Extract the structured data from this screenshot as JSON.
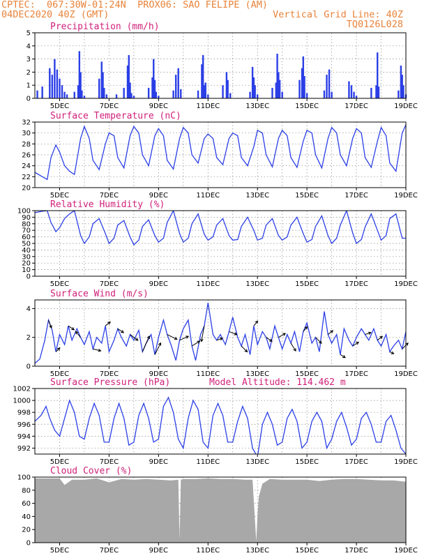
{
  "header": {
    "line1_left": "CPTEC:  067:30W-01:24N  PROX06: SAO FELIPE (AM)",
    "line2_left": "04DEC2020 40Z (GMT)",
    "line2_right": "Vertical Grid Line: 40Z",
    "line3_right": "TQ0126L028"
  },
  "colors": {
    "line": "#2b3fe6",
    "bar": "#2b3fe6",
    "cloud": "#a8a8a8",
    "title": "#d0207a",
    "header": "#e8833a"
  },
  "chart_data": [
    {
      "type": "bar",
      "title": "Precipitation (mm/h)",
      "ylim": [
        0,
        5
      ],
      "yticks": [
        0,
        1,
        2,
        3,
        4,
        5
      ],
      "xlim": [
        4.0,
        19.0
      ],
      "xticks": [
        "5DEC",
        "7DEC",
        "9DEC",
        "11DEC",
        "13DEC",
        "15DEC",
        "17DEC",
        "19DEC"
      ],
      "x": [
        4.1,
        4.3,
        4.6,
        4.7,
        4.8,
        4.9,
        5.0,
        5.1,
        5.2,
        5.3,
        5.6,
        5.75,
        5.8,
        5.85,
        5.9,
        6.0,
        6.6,
        6.7,
        6.75,
        6.8,
        6.9,
        7.3,
        7.6,
        7.75,
        7.8,
        7.85,
        7.9,
        8.0,
        8.6,
        8.75,
        8.8,
        8.85,
        8.9,
        9.0,
        9.6,
        9.7,
        9.8,
        9.9,
        10.6,
        10.75,
        10.8,
        10.85,
        10.9,
        11.0,
        11.6,
        11.75,
        11.8,
        11.9,
        12.7,
        12.8,
        12.85,
        12.9,
        13.0,
        13.6,
        13.75,
        13.8,
        13.85,
        13.9,
        14.0,
        14.7,
        14.8,
        14.85,
        14.9,
        15.0,
        15.7,
        15.8,
        15.9,
        16.0,
        16.7,
        16.8,
        16.9,
        17.0,
        17.6,
        17.8,
        17.85,
        17.9,
        18.7,
        18.8,
        18.85,
        18.9,
        19.0
      ],
      "values": [
        0.6,
        0.9,
        2.3,
        1.8,
        3.0,
        2.2,
        1.5,
        1.0,
        0.5,
        0.3,
        0.5,
        1.0,
        3.6,
        2.0,
        0.6,
        0.2,
        1.5,
        2.8,
        2.0,
        0.8,
        0.3,
        0.3,
        0.8,
        2.5,
        3.3,
        1.2,
        0.4,
        0.2,
        0.8,
        1.6,
        3.0,
        1.4,
        0.5,
        0.2,
        0.6,
        1.8,
        2.3,
        0.7,
        0.6,
        2.6,
        3.3,
        1.0,
        1.2,
        0.3,
        1.0,
        2.0,
        1.4,
        0.4,
        0.5,
        2.4,
        1.6,
        1.0,
        0.3,
        0.8,
        1.2,
        3.4,
        2.0,
        1.4,
        0.5,
        1.4,
        2.3,
        3.2,
        1.7,
        0.4,
        0.6,
        1.8,
        2.2,
        0.5,
        1.3,
        1.0,
        0.5,
        0.2,
        0.8,
        1.0,
        3.5,
        0.9,
        0.6,
        2.5,
        1.8,
        1.0,
        0.3
      ]
    },
    {
      "type": "line",
      "title": "Surface Temperature (nC)",
      "ylim": [
        20,
        32
      ],
      "yticks": [
        20,
        22,
        24,
        26,
        28,
        30,
        32
      ],
      "xlim": [
        4.0,
        19.0
      ],
      "xticks": [
        "5DEC",
        "7DEC",
        "9DEC",
        "11DEC",
        "13DEC",
        "15DEC",
        "17DEC",
        "19DEC"
      ],
      "x": [
        4.0,
        4.3,
        4.5,
        4.65,
        4.85,
        5.0,
        5.2,
        5.4,
        5.6,
        5.85,
        6.0,
        6.2,
        6.35,
        6.6,
        6.85,
        7.0,
        7.2,
        7.35,
        7.6,
        7.85,
        8.0,
        8.2,
        8.35,
        8.6,
        8.85,
        9.0,
        9.2,
        9.35,
        9.6,
        9.85,
        10.0,
        10.2,
        10.35,
        10.6,
        10.85,
        11.0,
        11.2,
        11.35,
        11.6,
        11.85,
        12.0,
        12.2,
        12.35,
        12.6,
        12.85,
        13.0,
        13.2,
        13.35,
        13.6,
        13.85,
        14.0,
        14.2,
        14.35,
        14.6,
        14.85,
        15.0,
        15.2,
        15.35,
        15.6,
        15.85,
        16.0,
        16.2,
        16.35,
        16.6,
        16.85,
        17.0,
        17.2,
        17.35,
        17.6,
        17.85,
        18.0,
        18.2,
        18.35,
        18.6,
        18.85,
        19.0
      ],
      "values": [
        22.8,
        22.0,
        21.5,
        25.5,
        27.8,
        26.5,
        24.0,
        23.0,
        22.4,
        29.0,
        31.2,
        29.0,
        25.0,
        23.3,
        28.0,
        30.0,
        29.5,
        25.5,
        23.6,
        29.5,
        31.2,
        30.0,
        26.0,
        24.0,
        29.5,
        30.8,
        29.5,
        25.0,
        23.4,
        29.0,
        31.0,
        30.0,
        26.0,
        24.5,
        29.0,
        29.8,
        29.0,
        25.5,
        24.2,
        29.0,
        30.0,
        29.5,
        25.5,
        24.0,
        27.5,
        30.5,
        30.0,
        26.0,
        23.8,
        29.0,
        30.5,
        29.5,
        25.5,
        23.7,
        28.5,
        30.5,
        30.0,
        26.0,
        23.6,
        29.0,
        31.0,
        30.0,
        26.0,
        24.0,
        29.0,
        30.8,
        30.0,
        25.5,
        23.7,
        28.5,
        31.0,
        29.5,
        24.5,
        23.0,
        30.0,
        31.5
      ]
    },
    {
      "type": "line",
      "title": "Relative Humidity (%)",
      "ylim": [
        0,
        100
      ],
      "yticks": [
        0,
        10,
        20,
        30,
        40,
        50,
        60,
        70,
        80,
        90,
        100
      ],
      "xlim": [
        4.0,
        19.0
      ],
      "xticks": [
        "5DEC",
        "7DEC",
        "9DEC",
        "11DEC",
        "13DEC",
        "15DEC",
        "17DEC",
        "19DEC"
      ],
      "x": [
        4.0,
        4.3,
        4.5,
        4.65,
        4.85,
        5.0,
        5.2,
        5.4,
        5.6,
        5.85,
        6.0,
        6.2,
        6.35,
        6.6,
        6.85,
        7.0,
        7.2,
        7.35,
        7.6,
        7.85,
        8.0,
        8.2,
        8.35,
        8.6,
        8.85,
        9.0,
        9.2,
        9.35,
        9.6,
        9.85,
        10.0,
        10.2,
        10.35,
        10.6,
        10.85,
        11.0,
        11.2,
        11.35,
        11.6,
        11.85,
        12.0,
        12.2,
        12.35,
        12.6,
        12.85,
        13.0,
        13.2,
        13.35,
        13.6,
        13.85,
        14.0,
        14.2,
        14.35,
        14.6,
        14.85,
        15.0,
        15.2,
        15.35,
        15.6,
        15.85,
        16.0,
        16.2,
        16.35,
        16.6,
        16.85,
        17.0,
        17.2,
        17.35,
        17.6,
        17.85,
        18.0,
        18.2,
        18.35,
        18.6,
        18.85,
        19.0
      ],
      "values": [
        97,
        99,
        100,
        82,
        68,
        74,
        88,
        95,
        100,
        62,
        50,
        60,
        80,
        88,
        65,
        50,
        58,
        78,
        85,
        60,
        48,
        55,
        76,
        86,
        62,
        52,
        58,
        82,
        100,
        65,
        52,
        58,
        80,
        95,
        64,
        55,
        60,
        78,
        88,
        62,
        55,
        56,
        76,
        90,
        70,
        55,
        58,
        78,
        88,
        62,
        55,
        60,
        78,
        90,
        65,
        52,
        56,
        76,
        92,
        62,
        50,
        58,
        78,
        100,
        66,
        50,
        56,
        75,
        95,
        70,
        55,
        62,
        88,
        95,
        58,
        58
      ]
    },
    {
      "type": "line",
      "title": "Surface Wind (m/s)",
      "ylim": [
        0,
        4.6
      ],
      "yticks": [
        0,
        2,
        4
      ],
      "xlim": [
        4.0,
        19.0
      ],
      "xticks": [
        "5DEC",
        "7DEC",
        "9DEC",
        "11DEC",
        "13DEC",
        "15DEC",
        "17DEC",
        "19DEC"
      ],
      "x": [
        4.0,
        4.2,
        4.4,
        4.55,
        4.7,
        4.85,
        5.0,
        5.2,
        5.35,
        5.5,
        5.7,
        5.85,
        6.0,
        6.2,
        6.35,
        6.5,
        6.7,
        6.85,
        7.0,
        7.2,
        7.35,
        7.5,
        7.7,
        7.85,
        8.0,
        8.2,
        8.35,
        8.5,
        8.7,
        8.85,
        9.0,
        9.2,
        9.35,
        9.5,
        9.7,
        9.85,
        10.0,
        10.2,
        10.35,
        10.5,
        10.7,
        10.85,
        11.0,
        11.2,
        11.35,
        11.5,
        11.7,
        11.85,
        12.0,
        12.2,
        12.35,
        12.5,
        12.7,
        12.85,
        13.0,
        13.2,
        13.35,
        13.5,
        13.7,
        13.85,
        14.0,
        14.2,
        14.35,
        14.5,
        14.7,
        14.85,
        15.0,
        15.2,
        15.35,
        15.5,
        15.7,
        15.85,
        16.0,
        16.2,
        16.35,
        16.5,
        16.7,
        16.85,
        17.0,
        17.2,
        17.35,
        17.5,
        17.7,
        17.85,
        18.0,
        18.2,
        18.35,
        18.5,
        18.7,
        18.85,
        19.0
      ],
      "values": [
        0.2,
        0.5,
        1.8,
        3.2,
        2.5,
        1.0,
        2.2,
        1.5,
        2.8,
        1.8,
        2.6,
        2.0,
        1.5,
        2.4,
        1.2,
        2.0,
        1.6,
        2.8,
        1.0,
        1.8,
        2.6,
        2.0,
        1.4,
        2.2,
        1.8,
        2.5,
        1.0,
        1.6,
        2.2,
        0.8,
        2.0,
        3.2,
        2.2,
        1.5,
        0.4,
        1.8,
        2.6,
        3.2,
        1.4,
        0.4,
        2.2,
        2.8,
        4.4,
        2.2,
        1.8,
        2.2,
        1.5,
        2.4,
        3.4,
        2.0,
        1.4,
        2.2,
        0.8,
        2.8,
        1.5,
        2.4,
        2.0,
        1.2,
        2.8,
        2.0,
        1.2,
        2.2,
        1.6,
        2.4,
        1.0,
        2.4,
        3.0,
        1.6,
        2.0,
        1.0,
        3.8,
        2.2,
        1.6,
        2.2,
        0.8,
        2.6,
        1.8,
        1.4,
        2.0,
        2.6,
        2.2,
        1.8,
        2.6,
        1.8,
        1.4,
        2.2,
        1.0,
        1.4,
        1.8,
        1.2,
        2.4
      ],
      "arrows": {
        "x": [
          4.55,
          4.85,
          5.35,
          5.85,
          6.35,
          6.85,
          7.35,
          7.85,
          8.35,
          8.85,
          9.35,
          9.85,
          10.35,
          10.85,
          11.35,
          11.85,
          12.35,
          12.85,
          13.35,
          13.85,
          14.35,
          14.85,
          15.35,
          15.85,
          16.35,
          16.85,
          17.35,
          17.85,
          18.35,
          18.85
        ],
        "u": [
          0.3,
          0.4,
          0.6,
          -0.5,
          0.8,
          0.5,
          0.6,
          0.8,
          0.7,
          0.6,
          1.0,
          0.9,
          0.8,
          -0.3,
          0.6,
          0.8,
          0.6,
          0.4,
          0.6,
          0.7,
          0.5,
          0.4,
          0.6,
          0.5,
          0.5,
          0.6,
          0.6,
          0.5,
          0.4,
          0.6
        ],
        "v": [
          -0.8,
          0.4,
          -0.4,
          0.6,
          -0.2,
          0.4,
          -0.4,
          -0.6,
          1.6,
          1.2,
          -0.5,
          0.4,
          0.5,
          -1.6,
          0.2,
          -0.3,
          -0.6,
          0.5,
          -0.4,
          0.4,
          -0.8,
          0.5,
          -0.6,
          0.4,
          -0.3,
          0.4,
          0.2,
          0.4,
          -0.2,
          0.6
        ]
      }
    },
    {
      "type": "line",
      "title": "Surface Pressure (hPa)",
      "annotation": "Model Altitude: 114.462 m",
      "ylim": [
        991,
        1002
      ],
      "yticks": [
        992,
        994,
        996,
        998,
        1000,
        1002
      ],
      "xlim": [
        4.0,
        19.0
      ],
      "xticks": [
        "5DEC",
        "7DEC",
        "9DEC",
        "11DEC",
        "13DEC",
        "15DEC",
        "17DEC",
        "19DEC"
      ],
      "x": [
        4.0,
        4.25,
        4.45,
        4.6,
        4.8,
        5.0,
        5.2,
        5.4,
        5.6,
        5.8,
        6.0,
        6.2,
        6.4,
        6.6,
        6.8,
        7.0,
        7.2,
        7.4,
        7.6,
        7.8,
        8.0,
        8.2,
        8.4,
        8.6,
        8.8,
        9.0,
        9.2,
        9.4,
        9.6,
        9.8,
        10.0,
        10.2,
        10.4,
        10.6,
        10.8,
        11.0,
        11.2,
        11.4,
        11.6,
        11.8,
        12.0,
        12.2,
        12.4,
        12.6,
        12.8,
        13.0,
        13.2,
        13.4,
        13.6,
        13.8,
        14.0,
        14.2,
        14.4,
        14.6,
        14.8,
        15.0,
        15.2,
        15.4,
        15.6,
        15.8,
        16.0,
        16.2,
        16.4,
        16.6,
        16.8,
        17.0,
        17.2,
        17.4,
        17.6,
        17.8,
        18.0,
        18.2,
        18.4,
        18.6,
        18.8,
        19.0
      ],
      "values": [
        996.5,
        997.5,
        999.0,
        997.0,
        995.0,
        994.0,
        997.0,
        1000.0,
        998.0,
        994.0,
        993.5,
        997.0,
        999.5,
        997.5,
        993.0,
        993.0,
        997.0,
        999.5,
        997.0,
        992.5,
        993.0,
        997.5,
        999.5,
        997.0,
        993.0,
        993.5,
        999.0,
        1000.5,
        998.0,
        993.5,
        992.0,
        997.0,
        1000.0,
        998.5,
        993.0,
        992.0,
        997.5,
        999.5,
        997.5,
        993.0,
        993.0,
        996.5,
        999.0,
        997.0,
        992.0,
        990.5,
        996.0,
        998.0,
        996.0,
        992.5,
        993.0,
        997.0,
        998.5,
        996.5,
        992.0,
        993.0,
        996.5,
        998.0,
        996.5,
        992.0,
        993.5,
        996.5,
        998.0,
        995.5,
        992.5,
        993.5,
        997.0,
        998.0,
        996.0,
        993.0,
        993.0,
        996.5,
        997.5,
        995.0,
        992.0,
        991.0
      ]
    },
    {
      "type": "area",
      "title": "Cloud Cover (%)",
      "ylim": [
        0,
        100
      ],
      "yticks": [
        0,
        20,
        40,
        60,
        80,
        100
      ],
      "xlim": [
        4.0,
        19.0
      ],
      "xticks": [
        "5DEC",
        "7DEC",
        "9DEC",
        "11DEC",
        "13DEC",
        "15DEC",
        "17DEC",
        "19DEC"
      ],
      "x": [
        4.0,
        4.5,
        5.0,
        5.2,
        5.5,
        6.0,
        6.5,
        7.0,
        7.5,
        8.0,
        8.5,
        9.0,
        9.5,
        9.8,
        9.85,
        9.9,
        10.0,
        10.5,
        11.0,
        11.5,
        12.0,
        12.5,
        12.8,
        12.95,
        13.0,
        13.05,
        13.2,
        13.5,
        14.0,
        14.5,
        15.0,
        15.5,
        16.0,
        16.5,
        17.0,
        17.5,
        18.0,
        18.5,
        19.0
      ],
      "values": [
        98,
        98,
        98,
        88,
        96,
        96,
        98,
        92,
        97,
        96,
        97,
        96,
        95,
        96,
        5,
        96,
        97,
        97,
        98,
        97,
        97,
        96,
        96,
        2,
        40,
        70,
        90,
        97,
        96,
        96,
        96,
        94,
        96,
        97,
        97,
        96,
        95,
        95,
        93
      ]
    }
  ]
}
